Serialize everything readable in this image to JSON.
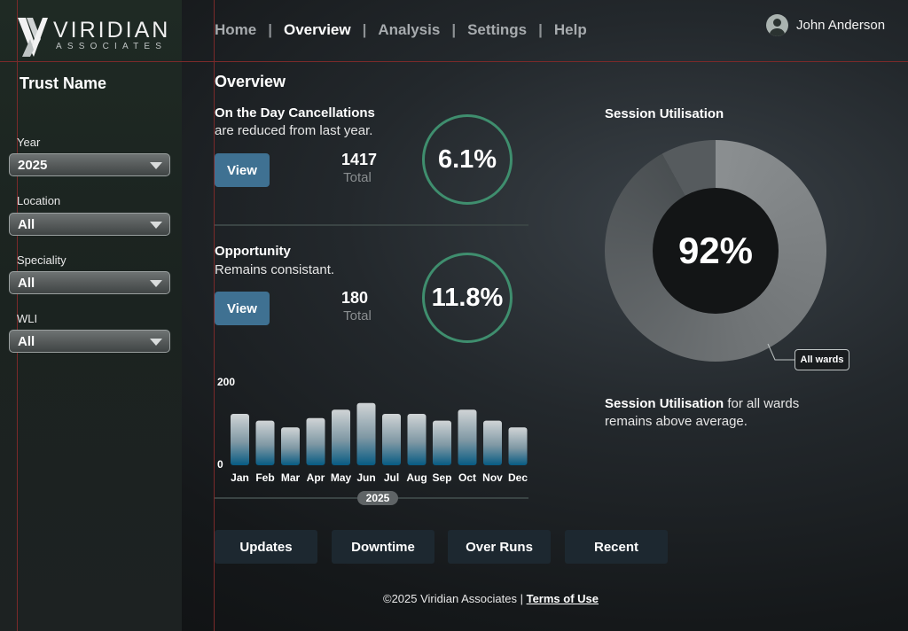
{
  "brand": {
    "name": "VIRIDIAN",
    "sub": "ASSOCIATES"
  },
  "nav": {
    "items": [
      "Home",
      "Overview",
      "Analysis",
      "Settings",
      "Help"
    ],
    "active": "Overview"
  },
  "user": {
    "name": "John Anderson",
    "icon": "user-avatar-icon"
  },
  "sidebar": {
    "title": "Trust Name",
    "filters": [
      {
        "label": "Year",
        "value": "2025"
      },
      {
        "label": "Location",
        "value": "All"
      },
      {
        "label": "Speciality",
        "value": "All"
      },
      {
        "label": "WLI",
        "value": "All"
      }
    ]
  },
  "main": {
    "title": "Overview",
    "cards": [
      {
        "title": "On the Day Cancellations",
        "subtitle": "are reduced from last year.",
        "button": "View",
        "value": "1417",
        "value_label": "Total",
        "percent": "6.1%"
      },
      {
        "title": "Opportunity",
        "subtitle": "Remains consistant.",
        "button": "View",
        "value": "180",
        "value_label": "Total",
        "percent": "11.8%"
      }
    ]
  },
  "chart_data": {
    "type": "bar",
    "categories": [
      "Jan",
      "Feb",
      "Mar",
      "Apr",
      "May",
      "Jun",
      "Jul",
      "Aug",
      "Sep",
      "Oct",
      "Nov",
      "Dec"
    ],
    "values": [
      122,
      106,
      90,
      112,
      132,
      148,
      122,
      122,
      106,
      132,
      106,
      90
    ],
    "ylim": [
      0,
      200
    ],
    "yticks": [
      "200",
      "0"
    ],
    "xlabel": "2025",
    "grid": false
  },
  "session": {
    "title": "Session Utilisation",
    "percent_text": "92%",
    "percent": 92,
    "callout": "All wards",
    "desc_bold": "Session Utilisation",
    "desc_rest": " for all wards remains above average."
  },
  "bottom_buttons": [
    "Updates",
    "Downtime",
    "Over Runs",
    "Recent"
  ],
  "footer": {
    "copyright": "©2025 Viridian Associates | ",
    "terms": "Terms of Use"
  },
  "colors": {
    "accent_green": "#3f8e6e",
    "button_blue": "#3f7192",
    "bar_top": "#c9cdcf",
    "bar_bottom": "#0b5f86"
  }
}
